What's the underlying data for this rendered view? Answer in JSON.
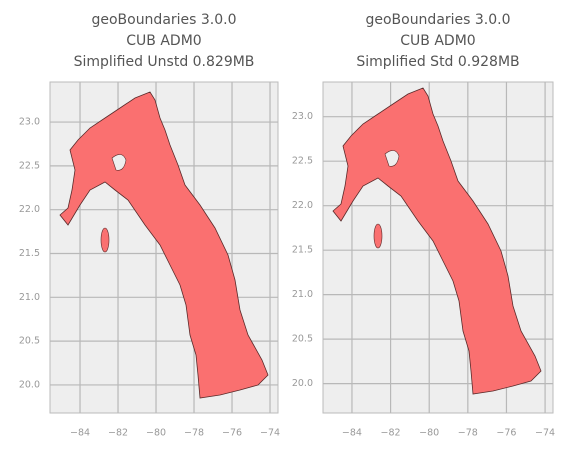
{
  "chart_data": [
    {
      "type": "map",
      "title": [
        "geoBoundaries 3.0.0",
        "CUB ADM0",
        "Simplified Unstd 0.829MB"
      ],
      "xlim": [
        -85.58,
        -73.58
      ],
      "ylim": [
        19.68,
        23.457
      ],
      "xticks": [
        {
          "value": -84,
          "label": "−84"
        },
        {
          "value": -82,
          "label": "−82"
        },
        {
          "value": -80,
          "label": "−80"
        },
        {
          "value": -78,
          "label": "−78"
        },
        {
          "value": -76,
          "label": "−76"
        },
        {
          "value": -74,
          "label": "−74"
        }
      ],
      "yticks": [
        {
          "value": 20,
          "label": "20.0"
        },
        20.5,
        {
          "value": 21,
          "label": "21.0"
        },
        21.5,
        {
          "value": 22,
          "label": "22.0"
        },
        22.5,
        {
          "value": 23,
          "label": "23.0"
        }
      ],
      "grid": true,
      "color": "#fa7070"
    },
    {
      "type": "map",
      "title": [
        "geoBoundaries 3.0.0",
        "CUB ADM0",
        "Simplified Std 0.928MB"
      ],
      "xlim": [
        -85.5,
        -73.59
      ],
      "ylim": [
        19.67,
        23.39
      ],
      "xticks": [
        {
          "value": -84,
          "label": "−84"
        },
        {
          "value": -82,
          "label": "−82"
        },
        {
          "value": -80,
          "label": "−80"
        },
        {
          "value": -78,
          "label": "−78"
        },
        {
          "value": -76,
          "label": "−76"
        },
        {
          "value": -74,
          "label": "−74"
        }
      ],
      "yticks": [
        {
          "value": 20,
          "label": "20.0"
        },
        20.5,
        {
          "value": 21,
          "label": "21.0"
        },
        21.5,
        {
          "value": 22,
          "label": "22.0"
        },
        22.5,
        {
          "value": 23,
          "label": "23.0"
        }
      ],
      "grid": true,
      "color": "#fa7070"
    }
  ]
}
